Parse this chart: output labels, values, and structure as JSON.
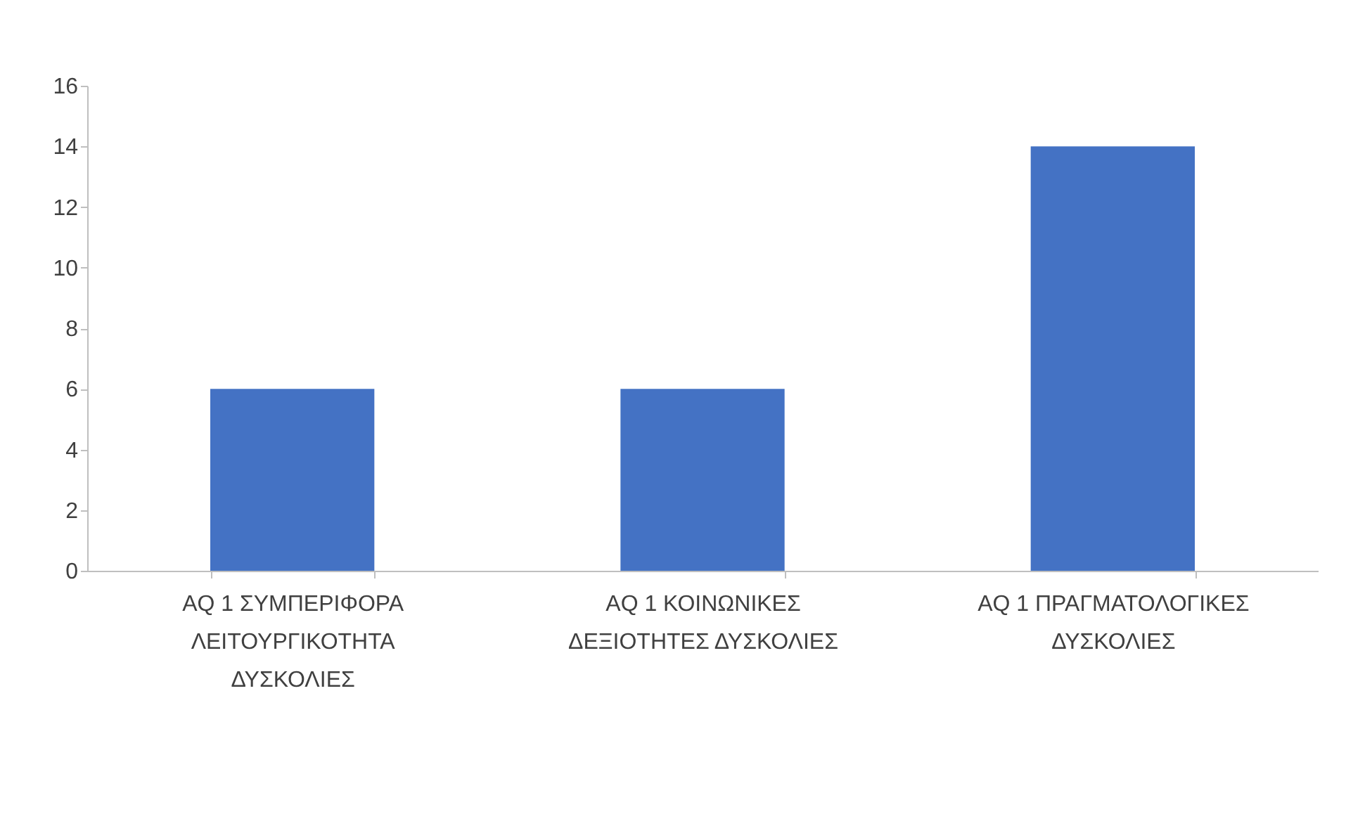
{
  "chart_data": {
    "type": "bar",
    "categories": [
      "AQ 1 ΣΥΜΠΕΡΙΦΟΡΑ ΛΕΙΤΟΥΡΓΙΚΟΤΗΤΑ ΔΥΣΚΟΛΙΕΣ",
      "AQ 1 ΚΟΙΝΩΝΙΚΕΣ ΔΕΞΙΟΤΗΤΕΣ ΔΥΣΚΟΛΙΕΣ",
      "AQ 1 ΠΡΑΓΜΑΤΟΛΟΓΙΚΕΣ ΔΥΣΚΟΛΙΕΣ"
    ],
    "values": [
      6,
      6,
      14
    ],
    "color": "#4472c4",
    "ylim": [
      0,
      16
    ],
    "yticks": [
      0,
      2,
      4,
      6,
      8,
      10,
      12,
      14,
      16
    ],
    "grid": false
  }
}
